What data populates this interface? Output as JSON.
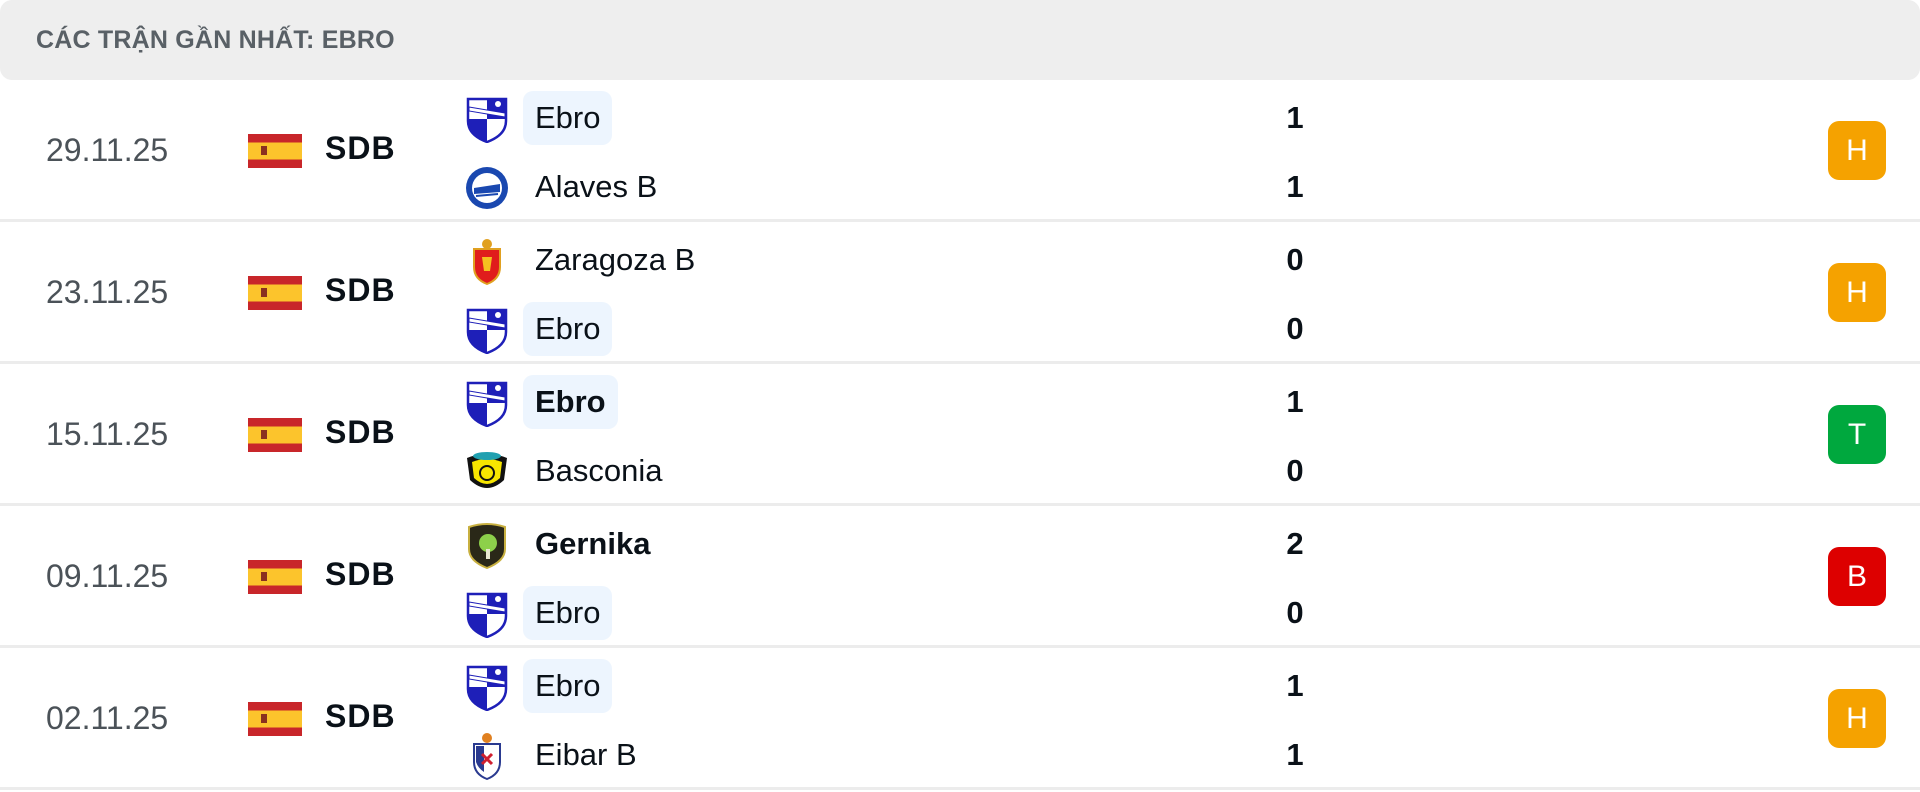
{
  "header": {
    "title": "CÁC TRẬN GẦN NHẤT: EBRO"
  },
  "colors": {
    "H": "#f5a200",
    "T": "#00a83e",
    "B": "#dd0000",
    "highlight": "#edf5fe"
  },
  "matches": [
    {
      "date": "29.11.25",
      "league": "SDB",
      "flag_icon": "spain-flag-icon",
      "result": "H",
      "home": {
        "name": "Ebro",
        "logo": "ebro",
        "score": "1",
        "highlight": true,
        "bold": false
      },
      "away": {
        "name": "Alaves B",
        "logo": "alaves",
        "score": "1",
        "highlight": false,
        "bold": false
      }
    },
    {
      "date": "23.11.25",
      "league": "SDB",
      "flag_icon": "spain-flag-icon",
      "result": "H",
      "home": {
        "name": "Zaragoza B",
        "logo": "zaragoza",
        "score": "0",
        "highlight": false,
        "bold": false
      },
      "away": {
        "name": "Ebro",
        "logo": "ebro",
        "score": "0",
        "highlight": true,
        "bold": false
      }
    },
    {
      "date": "15.11.25",
      "league": "SDB",
      "flag_icon": "spain-flag-icon",
      "result": "T",
      "home": {
        "name": "Ebro",
        "logo": "ebro",
        "score": "1",
        "highlight": true,
        "bold": true
      },
      "away": {
        "name": "Basconia",
        "logo": "basconia",
        "score": "0",
        "highlight": false,
        "bold": false
      }
    },
    {
      "date": "09.11.25",
      "league": "SDB",
      "flag_icon": "spain-flag-icon",
      "result": "B",
      "home": {
        "name": "Gernika",
        "logo": "gernika",
        "score": "2",
        "highlight": false,
        "bold": true
      },
      "away": {
        "name": "Ebro",
        "logo": "ebro",
        "score": "0",
        "highlight": true,
        "bold": false
      }
    },
    {
      "date": "02.11.25",
      "league": "SDB",
      "flag_icon": "spain-flag-icon",
      "result": "H",
      "home": {
        "name": "Ebro",
        "logo": "ebro",
        "score": "1",
        "highlight": true,
        "bold": false
      },
      "away": {
        "name": "Eibar B",
        "logo": "eibar",
        "score": "1",
        "highlight": false,
        "bold": false
      }
    }
  ]
}
